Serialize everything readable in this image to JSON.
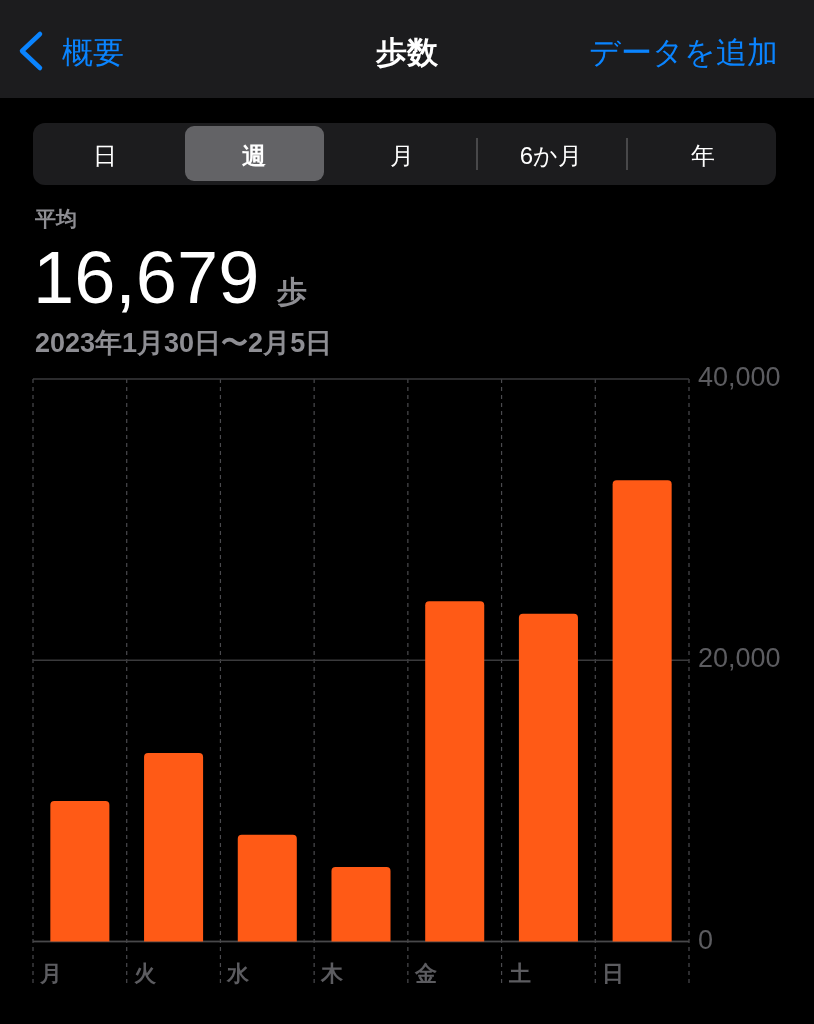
{
  "chart_data": {
    "type": "bar",
    "title": "歩数",
    "subtitle": "2023年1月30日〜2月5日",
    "annotations": [
      "概要",
      "データを追加",
      "日",
      "週",
      "月",
      "6か月",
      "年",
      "平均",
      "16,679",
      "歩"
    ],
    "categories": [
      "月",
      "火",
      "水",
      "木",
      "金",
      "土",
      "日"
    ],
    "values": [
      10000,
      13400,
      7600,
      5300,
      24200,
      23300,
      32800
    ],
    "color": "#ff5a16",
    "ylim": [
      0,
      40000
    ],
    "yticks": [
      0,
      {
        "value": 20000,
        "label": "20,000"
      },
      {
        "value": 40000,
        "label": "40,000"
      }
    ],
    "grid": true
  }
}
